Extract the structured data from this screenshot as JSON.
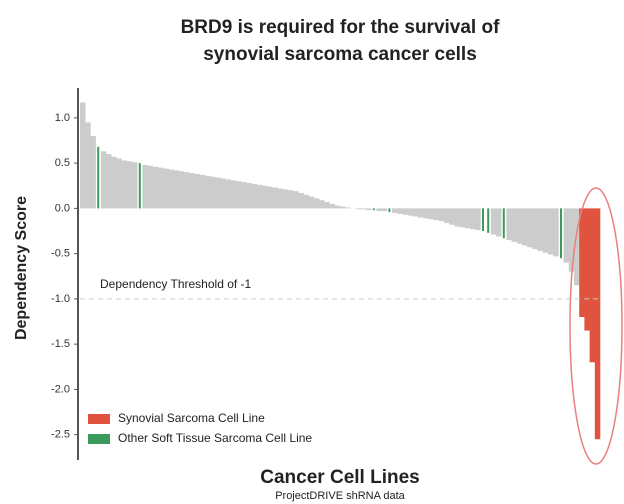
{
  "chart_data": {
    "type": "bar",
    "title": [
      "BRD9 is required for the survival of",
      "synovial sarcoma cancer cells"
    ],
    "y_label": "Dependency Score",
    "x_label": "Cancer Cell Lines",
    "source": "ProjectDRIVE shRNA data",
    "threshold": -1,
    "threshold_label": "Dependency Threshold of -1",
    "ylim": [
      -2.78,
      1.33
    ],
    "yticks": [
      {
        "value": 1,
        "label": "1.0"
      },
      0.5,
      {
        "value": 0,
        "label": "0.0"
      },
      -0.5,
      {
        "value": -1,
        "label": "-1.0"
      },
      -1.5,
      {
        "value": -2,
        "label": "-2.0"
      },
      -2.5
    ],
    "series": [
      {
        "color": "#cccccc",
        "values": [
          1.17,
          0.95,
          0.8,
          null,
          0.63,
          0.6,
          0.57,
          0.55,
          0.53,
          0.52,
          0.51,
          null,
          0.48,
          0.47,
          0.46,
          0.45,
          0.44,
          0.43,
          0.42,
          0.41,
          0.4,
          0.39,
          0.38,
          0.37,
          0.36,
          0.35,
          0.34,
          0.33,
          0.32,
          0.31,
          0.3,
          0.29,
          0.28,
          0.27,
          0.26,
          0.25,
          0.24,
          0.23,
          0.22,
          0.21,
          0.2,
          0.19,
          0.17,
          0.15,
          0.13,
          0.11,
          0.09,
          0.07,
          0.05,
          0.03,
          0.02,
          0.01,
          0,
          -0.01,
          -0.01,
          -0.02,
          null,
          -0.03,
          -0.03,
          null,
          -0.05,
          -0.06,
          -0.07,
          -0.08,
          -0.09,
          -0.1,
          -0.11,
          -0.12,
          -0.13,
          -0.14,
          -0.16,
          -0.18,
          -0.2,
          -0.21,
          -0.22,
          -0.23,
          -0.24,
          null,
          null,
          -0.29,
          -0.31,
          null,
          -0.35,
          -0.37,
          -0.39,
          -0.41,
          -0.43,
          -0.45,
          -0.47,
          -0.49,
          -0.51,
          -0.53,
          null,
          -0.6,
          -0.7,
          -0.85,
          null,
          null,
          null,
          null
        ]
      },
      {
        "name": "Synovial Sarcoma Cell Line",
        "color": "#e0533f",
        "values": [
          null,
          null,
          null,
          null,
          null,
          null,
          null,
          null,
          null,
          null,
          null,
          null,
          null,
          null,
          null,
          null,
          null,
          null,
          null,
          null,
          null,
          null,
          null,
          null,
          null,
          null,
          null,
          null,
          null,
          null,
          null,
          null,
          null,
          null,
          null,
          null,
          null,
          null,
          null,
          null,
          null,
          null,
          null,
          null,
          null,
          null,
          null,
          null,
          null,
          null,
          null,
          null,
          null,
          null,
          null,
          null,
          null,
          null,
          null,
          null,
          null,
          null,
          null,
          null,
          null,
          null,
          null,
          null,
          null,
          null,
          null,
          null,
          null,
          null,
          null,
          null,
          null,
          null,
          null,
          null,
          null,
          null,
          null,
          null,
          null,
          null,
          null,
          null,
          null,
          null,
          null,
          null,
          null,
          null,
          null,
          null,
          -1.2,
          -1.35,
          -1.7,
          -2.55
        ]
      },
      {
        "name": "Other Soft Tissue Sarcoma Cell Line",
        "color": "#3a9a5c",
        "values": [
          null,
          null,
          null,
          0.68,
          null,
          null,
          null,
          null,
          null,
          null,
          null,
          0.5,
          null,
          null,
          null,
          null,
          null,
          null,
          null,
          null,
          null,
          null,
          null,
          null,
          null,
          null,
          null,
          null,
          null,
          null,
          null,
          null,
          null,
          null,
          null,
          null,
          null,
          null,
          null,
          null,
          null,
          null,
          null,
          null,
          null,
          null,
          null,
          null,
          null,
          null,
          null,
          null,
          null,
          null,
          null,
          null,
          -0.02,
          null,
          null,
          -0.04,
          null,
          null,
          null,
          null,
          null,
          null,
          null,
          null,
          null,
          null,
          null,
          null,
          null,
          null,
          null,
          null,
          null,
          -0.25,
          -0.27,
          null,
          null,
          -0.33,
          null,
          null,
          null,
          null,
          null,
          null,
          null,
          null,
          null,
          null,
          -0.55,
          null,
          null,
          null,
          null,
          null,
          null,
          null
        ]
      }
    ]
  }
}
